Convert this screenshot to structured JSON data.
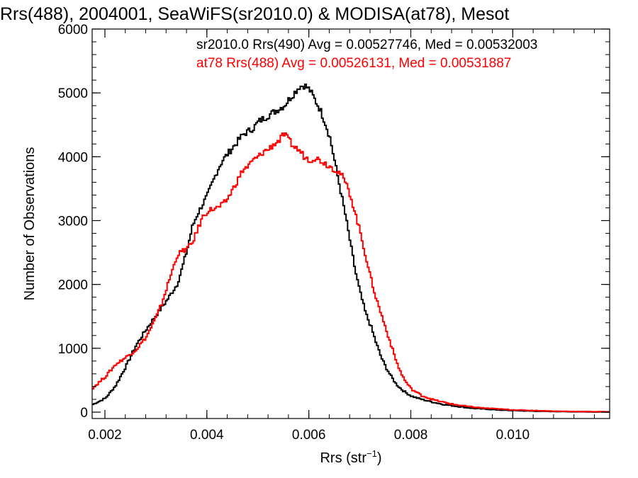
{
  "chart_data": {
    "type": "line",
    "title": "Rrs(488), 2004001, SeaWiFS(sr2010.0) & MODISA(at78), Mesot",
    "xlabel": {
      "prefix": "Rrs (str",
      "sup": "−1",
      "suffix": ")"
    },
    "ylabel": "Number of Observations",
    "xlim": [
      0.00175,
      0.0119
    ],
    "ylim": [
      -100,
      6000
    ],
    "x_ticks": [
      {
        "value": 0.002,
        "label": "0.002"
      },
      {
        "value": 0.004,
        "label": "0.004"
      },
      {
        "value": 0.006,
        "label": "0.006"
      },
      {
        "value": 0.008,
        "label": "0.008"
      },
      {
        "value": 0.01,
        "label": "0.010"
      }
    ],
    "y_ticks": [
      {
        "value": 0,
        "label": "0"
      },
      {
        "value": 1000,
        "label": "1000"
      },
      {
        "value": 2000,
        "label": "2000"
      },
      {
        "value": 3000,
        "label": "3000"
      },
      {
        "value": 4000,
        "label": "4000"
      },
      {
        "value": 5000,
        "label": "5000"
      },
      {
        "value": 6000,
        "label": "6000"
      }
    ],
    "grid": false,
    "legend": "top-right",
    "series": [
      {
        "name": "sr2010.0 Rrs(490) Avg = 0.00527746, Med = 0.00532003",
        "color": "#000000",
        "style": "step",
        "points": [
          [
            0.00175,
            120
          ],
          [
            0.002,
            220
          ],
          [
            0.0022,
            420
          ],
          [
            0.0024,
            720
          ],
          [
            0.0026,
            1050
          ],
          [
            0.0028,
            1300
          ],
          [
            0.003,
            1530
          ],
          [
            0.0032,
            1750
          ],
          [
            0.0034,
            2000
          ],
          [
            0.0035,
            2250
          ],
          [
            0.0036,
            2550
          ],
          [
            0.0037,
            2900
          ],
          [
            0.0038,
            3100
          ],
          [
            0.0039,
            3250
          ],
          [
            0.004,
            3400
          ],
          [
            0.0041,
            3600
          ],
          [
            0.0042,
            3800
          ],
          [
            0.0043,
            3950
          ],
          [
            0.0044,
            4050
          ],
          [
            0.0045,
            4150
          ],
          [
            0.0046,
            4250
          ],
          [
            0.0047,
            4350
          ],
          [
            0.0048,
            4400
          ],
          [
            0.0049,
            4450
          ],
          [
            0.005,
            4550
          ],
          [
            0.0051,
            4600
          ],
          [
            0.0052,
            4650
          ],
          [
            0.0053,
            4700
          ],
          [
            0.0054,
            4750
          ],
          [
            0.0055,
            4800
          ],
          [
            0.0056,
            4900
          ],
          [
            0.0057,
            5000
          ],
          [
            0.0058,
            5100
          ],
          [
            0.0059,
            5120
          ],
          [
            0.006,
            5050
          ],
          [
            0.0061,
            4900
          ],
          [
            0.0062,
            4750
          ],
          [
            0.0063,
            4550
          ],
          [
            0.0064,
            4300
          ],
          [
            0.0065,
            3900
          ],
          [
            0.0066,
            3500
          ],
          [
            0.0067,
            3100
          ],
          [
            0.0068,
            2650
          ],
          [
            0.0069,
            2200
          ],
          [
            0.007,
            1850
          ],
          [
            0.0071,
            1550
          ],
          [
            0.0072,
            1350
          ],
          [
            0.0073,
            1100
          ],
          [
            0.0074,
            870
          ],
          [
            0.0075,
            700
          ],
          [
            0.0076,
            560
          ],
          [
            0.0077,
            440
          ],
          [
            0.0078,
            360
          ],
          [
            0.0079,
            300
          ],
          [
            0.008,
            250
          ],
          [
            0.0082,
            200
          ],
          [
            0.0084,
            160
          ],
          [
            0.0086,
            125
          ],
          [
            0.0088,
            100
          ],
          [
            0.009,
            80
          ],
          [
            0.0092,
            60
          ],
          [
            0.0094,
            50
          ],
          [
            0.0096,
            40
          ],
          [
            0.0098,
            30
          ],
          [
            0.01,
            25
          ],
          [
            0.0104,
            15
          ],
          [
            0.0108,
            10
          ],
          [
            0.0112,
            5
          ],
          [
            0.0116,
            3
          ],
          [
            0.0119,
            2
          ]
        ]
      },
      {
        "name": "at78 Rrs(488) Avg = 0.00526131, Med = 0.00531887",
        "color": "#ff0000",
        "style": "step",
        "points": [
          [
            0.00175,
            380
          ],
          [
            0.002,
            560
          ],
          [
            0.0022,
            750
          ],
          [
            0.0024,
            860
          ],
          [
            0.0026,
            980
          ],
          [
            0.0028,
            1180
          ],
          [
            0.003,
            1500
          ],
          [
            0.0031,
            1700
          ],
          [
            0.0032,
            1950
          ],
          [
            0.0033,
            2200
          ],
          [
            0.0034,
            2450
          ],
          [
            0.0035,
            2520
          ],
          [
            0.0036,
            2560
          ],
          [
            0.0037,
            2650
          ],
          [
            0.0038,
            2850
          ],
          [
            0.0039,
            3050
          ],
          [
            0.004,
            3150
          ],
          [
            0.0041,
            3180
          ],
          [
            0.0042,
            3200
          ],
          [
            0.0043,
            3250
          ],
          [
            0.0044,
            3350
          ],
          [
            0.0045,
            3500
          ],
          [
            0.0046,
            3650
          ],
          [
            0.0047,
            3800
          ],
          [
            0.0048,
            3850
          ],
          [
            0.0049,
            3950
          ],
          [
            0.005,
            4000
          ],
          [
            0.0051,
            4080
          ],
          [
            0.0052,
            4120
          ],
          [
            0.0053,
            4200
          ],
          [
            0.0054,
            4250
          ],
          [
            0.0055,
            4350
          ],
          [
            0.0056,
            4250
          ],
          [
            0.0057,
            4150
          ],
          [
            0.0058,
            4100
          ],
          [
            0.0059,
            4000
          ],
          [
            0.006,
            3950
          ],
          [
            0.0061,
            3980
          ],
          [
            0.0062,
            3950
          ],
          [
            0.0063,
            3900
          ],
          [
            0.0064,
            3850
          ],
          [
            0.0065,
            3800
          ],
          [
            0.0066,
            3750
          ],
          [
            0.0067,
            3600
          ],
          [
            0.0068,
            3400
          ],
          [
            0.0069,
            3100
          ],
          [
            0.007,
            2800
          ],
          [
            0.0071,
            2450
          ],
          [
            0.0072,
            2100
          ],
          [
            0.0073,
            1800
          ],
          [
            0.0074,
            1550
          ],
          [
            0.0075,
            1300
          ],
          [
            0.0076,
            1050
          ],
          [
            0.0077,
            800
          ],
          [
            0.0078,
            600
          ],
          [
            0.0079,
            460
          ],
          [
            0.008,
            360
          ],
          [
            0.0082,
            260
          ],
          [
            0.0084,
            200
          ],
          [
            0.0086,
            160
          ],
          [
            0.0088,
            125
          ],
          [
            0.009,
            100
          ],
          [
            0.0092,
            80
          ],
          [
            0.0094,
            65
          ],
          [
            0.0096,
            55
          ],
          [
            0.0098,
            45
          ],
          [
            0.01,
            35
          ],
          [
            0.0104,
            25
          ],
          [
            0.0108,
            15
          ],
          [
            0.0112,
            10
          ],
          [
            0.0116,
            8
          ],
          [
            0.0119,
            5
          ]
        ]
      }
    ]
  }
}
